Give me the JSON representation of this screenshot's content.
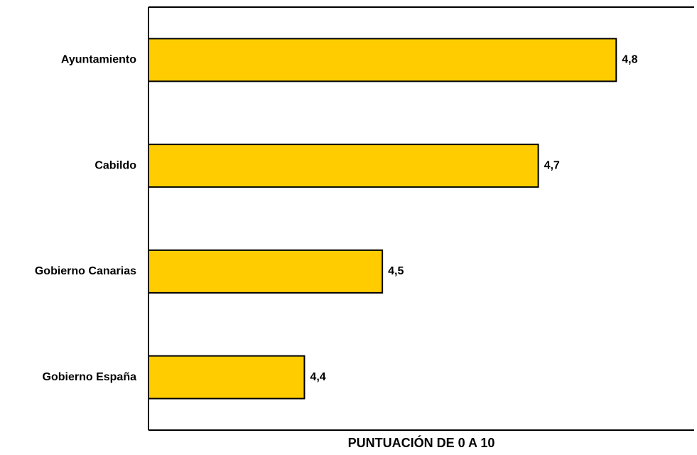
{
  "chart_data": {
    "type": "hbar",
    "categories": [
      "Ayuntamiento",
      "Cabildo",
      "Gobierno Canarias",
      "Gobierno España"
    ],
    "values": [
      4.8,
      4.7,
      4.5,
      4.4
    ],
    "value_labels": [
      "4,8",
      "4,7",
      "4,5",
      "4,4"
    ],
    "color": "#ffcc00",
    "xlim": [
      4.2,
      4.9
    ],
    "x_label": "PUNTUACIÓN DE 0 A 10"
  }
}
